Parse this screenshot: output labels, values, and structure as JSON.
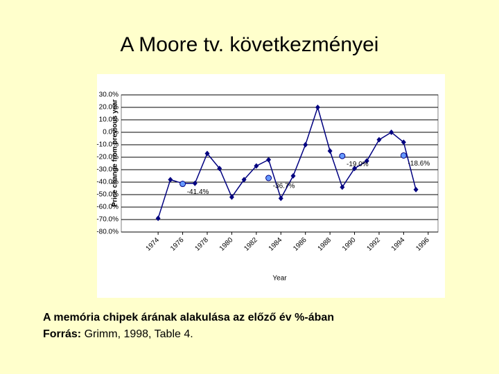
{
  "title": "A Moore tv. következményei",
  "chart_data": {
    "type": "line",
    "ylabel": "Price change from previous year",
    "xlabel": "Year",
    "x": [
      1974,
      1975,
      1976,
      1977,
      1978,
      1979,
      1980,
      1981,
      1982,
      1983,
      1984,
      1985,
      1986,
      1987,
      1988,
      1989,
      1990,
      1991,
      1992,
      1993,
      1994,
      1995
    ],
    "series": [
      {
        "color": "#000080",
        "marker": "diamond",
        "line": true,
        "values": [
          -69,
          -38,
          -41,
          -41,
          -17,
          -29,
          -52,
          -38,
          -27,
          -22,
          -53,
          -35,
          -10,
          20,
          -15,
          -44,
          -29,
          -23,
          -6,
          0,
          -8,
          -46
        ]
      },
      {
        "color": "#6699ff",
        "marker": "circle",
        "line": false,
        "values": [
          null,
          null,
          -41.4,
          null,
          null,
          null,
          null,
          null,
          null,
          -36.7,
          null,
          null,
          null,
          null,
          null,
          -19.0,
          null,
          null,
          null,
          null,
          -18.6,
          null
        ],
        "value_labels": [
          null,
          null,
          "-41.4%",
          null,
          null,
          null,
          null,
          null,
          null,
          "-36.7%",
          null,
          null,
          null,
          null,
          null,
          "-19.0%",
          null,
          null,
          null,
          null,
          "-18.6%",
          null
        ]
      }
    ],
    "xlim": [
      1971,
      1996.8
    ],
    "xticks": [
      1974,
      1976,
      1978,
      1980,
      1982,
      1984,
      1986,
      1988,
      1990,
      1992,
      1994,
      1996
    ],
    "ylim": [
      -80,
      30
    ],
    "yticks": [
      {
        "value": 30,
        "label": "30.0%"
      },
      {
        "value": 20,
        "label": "20.0%"
      },
      {
        "value": 10,
        "label": "10.0%"
      },
      {
        "value": 0,
        "label": "0.0%"
      },
      {
        "value": -10,
        "label": "-10.0%"
      },
      {
        "value": -20,
        "label": "-20.0%"
      },
      {
        "value": -30,
        "label": "-30.0%"
      },
      {
        "value": -40,
        "label": "-40.0%"
      },
      {
        "value": -50,
        "label": "-50.0%"
      },
      {
        "value": -60,
        "label": "-60.0%"
      },
      {
        "value": -70,
        "label": "-70.0%"
      },
      {
        "value": -80,
        "label": "-80.0%"
      }
    ],
    "grid": true
  },
  "caption": {
    "text": "A memória chipek árának alakulása az előző év %-ában",
    "source_label": "Forrás:",
    "source": "Grimm, 1998, Table 4."
  }
}
